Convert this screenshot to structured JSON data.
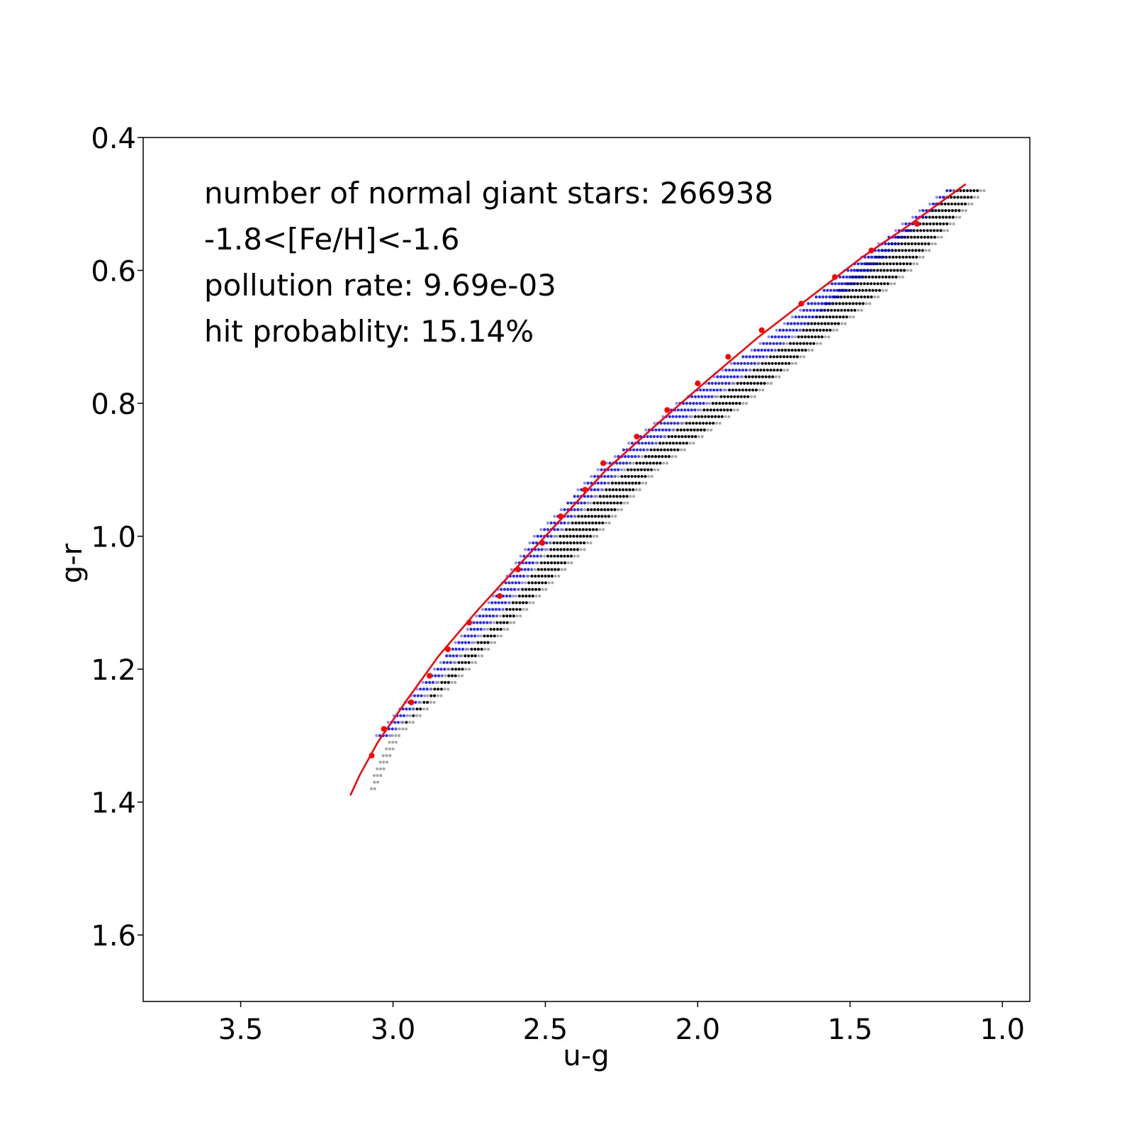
{
  "chart_data": {
    "type": "scatter",
    "xlabel": "u-g",
    "ylabel": "g-r",
    "xlim": [
      3.82,
      0.91
    ],
    "ylim": [
      1.7,
      0.4
    ],
    "x_inverted": true,
    "y_inverted": true,
    "xticks": [
      3.5,
      3.0,
      2.5,
      2.0,
      1.5,
      1.0
    ],
    "xtick_labels": [
      "3.5",
      "3.0",
      "2.5",
      "2.0",
      "1.5",
      "1.0"
    ],
    "yticks": [
      0.4,
      0.6,
      0.8,
      1.0,
      1.2,
      1.4,
      1.6
    ],
    "ytick_labels": [
      "0.4",
      "0.6",
      "0.8",
      "1.0",
      "1.2",
      "1.4",
      "1.6"
    ],
    "grid": false,
    "annotations": [
      "number of normal giant stars: 266938",
      "-1.8<[Fe/H]<-1.6",
      "pollution rate: 9.69e-03",
      "hit probablity: 15.14%"
    ],
    "colors": {
      "stars": "#000000",
      "polluted": "#0000ff",
      "fit": "#ff0000"
    },
    "series": [
      {
        "type": "band",
        "color": "#000000",
        "description_values": "dense grid of stellar locus points between the left and right edges",
        "y": [
          0.48,
          0.6,
          0.7,
          0.8,
          0.9,
          1.0,
          1.1,
          1.2,
          1.3,
          1.38
        ],
        "x_left": [
          1.17,
          1.49,
          1.69,
          1.97,
          2.25,
          2.47,
          2.62,
          2.82,
          3.01,
          3.08
        ],
        "x_right": [
          1.06,
          1.3,
          1.57,
          1.84,
          2.13,
          2.33,
          2.54,
          2.75,
          2.98,
          3.06
        ]
      },
      {
        "type": "band",
        "color": "#0000ff",
        "y": [
          0.48,
          0.6,
          0.7,
          0.8,
          0.9,
          1.0,
          1.1,
          1.2,
          1.3
        ],
        "x_left": [
          1.19,
          1.52,
          1.77,
          2.07,
          2.33,
          2.54,
          2.69,
          2.87,
          3.06
        ],
        "x_right": [
          1.16,
          1.43,
          1.69,
          1.97,
          2.25,
          2.47,
          2.62,
          2.82,
          3.01
        ]
      },
      {
        "type": "line",
        "color": "#ff0000",
        "x": [
          3.14,
          3.11,
          3.05,
          2.96,
          2.85,
          2.72,
          2.58,
          2.44,
          2.3,
          2.13,
          1.98,
          1.8,
          1.63,
          1.46,
          1.3,
          1.12
        ],
        "y": [
          1.39,
          1.36,
          1.31,
          1.25,
          1.18,
          1.11,
          1.04,
          0.97,
          0.9,
          0.83,
          0.77,
          0.7,
          0.64,
          0.58,
          0.53,
          0.47
        ]
      },
      {
        "type": "scatter",
        "color": "#ff0000",
        "x": [
          3.07,
          3.03,
          2.94,
          2.88,
          2.82,
          2.75,
          2.65,
          2.59,
          2.51,
          2.45,
          2.37,
          2.31,
          2.2,
          2.1,
          2.0,
          1.9,
          1.79,
          1.66,
          1.55,
          1.43,
          1.28
        ],
        "y": [
          1.33,
          1.29,
          1.25,
          1.21,
          1.17,
          1.13,
          1.09,
          1.05,
          1.01,
          0.97,
          0.93,
          0.89,
          0.85,
          0.81,
          0.77,
          0.73,
          0.69,
          0.65,
          0.61,
          0.57,
          0.53
        ]
      }
    ]
  }
}
